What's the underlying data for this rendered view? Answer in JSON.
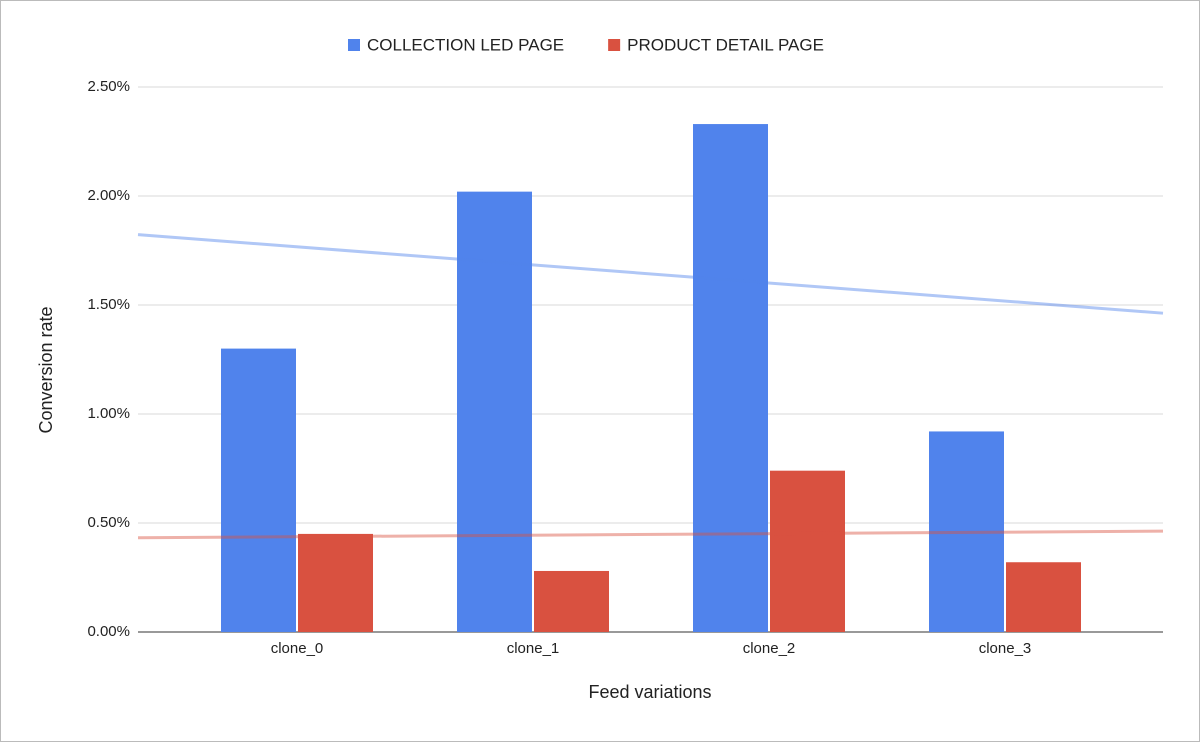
{
  "chart_data": {
    "type": "bar",
    "x_label": "Feed variations",
    "y_label": "Conversion rate",
    "categories": [
      "clone_0",
      "clone_1",
      "clone_2",
      "clone_3"
    ],
    "series": [
      {
        "name": "COLLECTION LED PAGE",
        "color": "#5083ec",
        "values": [
          1.3,
          2.02,
          2.33,
          0.92
        ],
        "trendline": true
      },
      {
        "name": "PRODUCT DETAIL PAGE",
        "color": "#d95140",
        "values": [
          0.45,
          0.28,
          0.74,
          0.32
        ],
        "trendline": true
      }
    ],
    "ylim": [
      0,
      2.5
    ],
    "yticks": [
      {
        "value": 0,
        "label": "0.00%"
      },
      {
        "value": 0.5,
        "label": "0.50%"
      },
      {
        "value": 1,
        "label": "1.00%"
      },
      {
        "value": 1.5,
        "label": "1.50%"
      },
      {
        "value": 2,
        "label": "2.00%"
      },
      {
        "value": 2.5,
        "label": "2.50%"
      }
    ],
    "grid": true,
    "legend": "top"
  }
}
